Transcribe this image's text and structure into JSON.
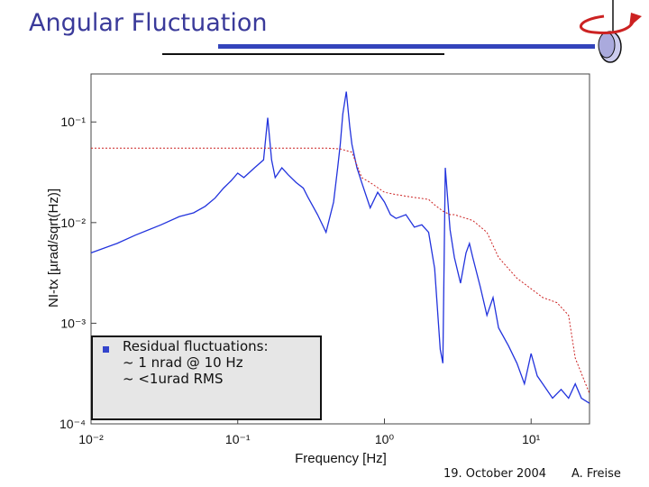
{
  "slide": {
    "title": "Angular Fluctuation",
    "date": "19. October 2004",
    "author": "A. Freise"
  },
  "note": {
    "lines": [
      "Residual fluctuations:",
      "~ 1 nrad @ 10 Hz",
      "~ <1urad RMS"
    ]
  },
  "colors": {
    "title": "#3a3a9a",
    "spectrum": "#2233dd",
    "rms": "#cc2222",
    "accent_bar": "#3344bb",
    "icon_arrow": "#cc2222"
  },
  "chart_data": {
    "type": "line",
    "xlabel": "Frequency [Hz]",
    "ylabel": "NI-tx [µrad/sqrt(Hz)]",
    "x_scale": "log",
    "y_scale": "log",
    "xlim": [
      0.01,
      25
    ],
    "ylim": [
      0.0001,
      0.3
    ],
    "x_ticks": [
      {
        "value": 0.01,
        "label": "10⁻²"
      },
      {
        "value": 0.1,
        "label": "10⁻¹"
      },
      {
        "value": 1,
        "label": "10⁰"
      },
      {
        "value": 10,
        "label": "10¹"
      }
    ],
    "y_ticks": [
      {
        "value": 0.0001,
        "label": "10⁻⁴"
      },
      {
        "value": 0.001,
        "label": "10⁻³"
      },
      {
        "value": 0.01,
        "label": "10⁻²"
      },
      {
        "value": 0.1,
        "label": "10⁻¹"
      }
    ],
    "grid": false,
    "series": [
      {
        "color": "#2233dd",
        "x": [
          0.01,
          0.015,
          0.02,
          0.03,
          0.04,
          0.05,
          0.06,
          0.07,
          0.08,
          0.09,
          0.1,
          0.11,
          0.13,
          0.15,
          0.16,
          0.17,
          0.18,
          0.2,
          0.22,
          0.25,
          0.28,
          0.3,
          0.35,
          0.4,
          0.45,
          0.48,
          0.5,
          0.52,
          0.55,
          0.58,
          0.6,
          0.65,
          0.7,
          0.8,
          0.9,
          1.0,
          1.1,
          1.2,
          1.4,
          1.6,
          1.8,
          2.0,
          2.2,
          2.4,
          2.5,
          2.6,
          2.8,
          3.0,
          3.3,
          3.6,
          3.8,
          4.0,
          4.5,
          5.0,
          5.5,
          6.0,
          7.0,
          8.0,
          9.0,
          10.0,
          11.0,
          12.0,
          14.0,
          16.0,
          18.0,
          20.0,
          22.0,
          25.0
        ],
        "y": [
          0.005,
          0.0062,
          0.0075,
          0.0095,
          0.0115,
          0.0125,
          0.0145,
          0.0175,
          0.022,
          0.026,
          0.031,
          0.028,
          0.035,
          0.042,
          0.11,
          0.042,
          0.028,
          0.035,
          0.03,
          0.025,
          0.022,
          0.018,
          0.012,
          0.008,
          0.016,
          0.035,
          0.06,
          0.12,
          0.2,
          0.09,
          0.06,
          0.035,
          0.025,
          0.014,
          0.02,
          0.016,
          0.012,
          0.011,
          0.012,
          0.009,
          0.0095,
          0.008,
          0.0035,
          0.00055,
          0.0004,
          0.035,
          0.0085,
          0.0045,
          0.0025,
          0.005,
          0.0062,
          0.0045,
          0.0023,
          0.0012,
          0.0018,
          0.0009,
          0.0006,
          0.0004,
          0.00025,
          0.0005,
          0.0003,
          0.00025,
          0.00018,
          0.00022,
          0.00018,
          0.00025,
          0.00018,
          0.00016
        ]
      },
      {
        "color": "#cc2222",
        "dashed": true,
        "x": [
          0.01,
          0.05,
          0.1,
          0.2,
          0.3,
          0.4,
          0.5,
          0.6,
          0.7,
          0.8,
          1.0,
          1.2,
          1.5,
          2.0,
          2.2,
          2.5,
          2.8,
          3.0,
          4.0,
          5.0,
          6.0,
          8.0,
          10.0,
          12.0,
          15.0,
          18.0,
          20.0,
          25.0
        ],
        "y": [
          0.055,
          0.055,
          0.055,
          0.055,
          0.055,
          0.055,
          0.054,
          0.05,
          0.028,
          0.025,
          0.02,
          0.019,
          0.018,
          0.017,
          0.015,
          0.013,
          0.012,
          0.012,
          0.0105,
          0.008,
          0.0045,
          0.0028,
          0.0022,
          0.0018,
          0.0016,
          0.0012,
          0.00045,
          0.0002
        ]
      }
    ]
  }
}
